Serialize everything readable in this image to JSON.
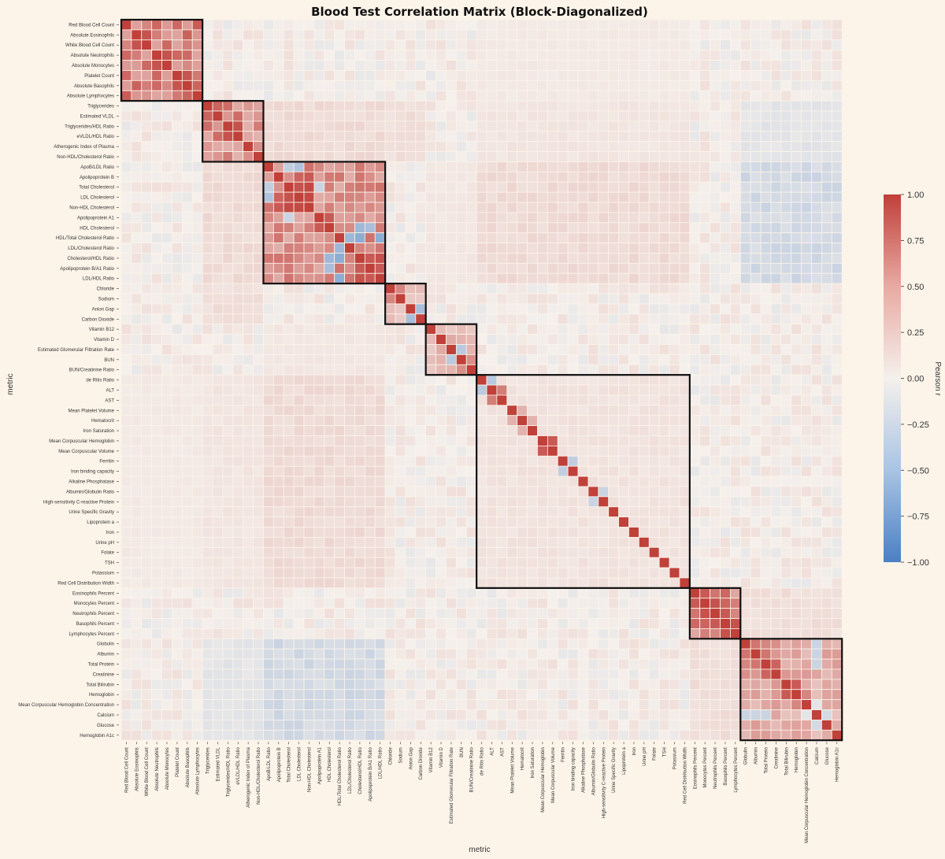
{
  "chart_data": {
    "type": "heatmap",
    "title": "Blood Test Correlation Matrix (Block-Diagonalized)",
    "xlabel": "metric",
    "ylabel": "metric",
    "colorbar_label": "Pearson r",
    "colorbar_ticks": [
      "1.00",
      "0.75",
      "0.50",
      "0.25",
      "0.00",
      "−0.25",
      "−0.50",
      "−0.75",
      "−1.00"
    ],
    "vmin": -1,
    "vmax": 1,
    "colors": {
      "high": "#c0403a",
      "mid": "#f5f0ec",
      "low": "#4a80c4",
      "block_outline": "#111111",
      "background": "#fcf4e9"
    },
    "metrics": [
      "Red Blood Cell Count",
      "Absolute Eosinophils",
      "White Blood Cell Count",
      "Absolute Neutrophils",
      "Absolute Monocytes",
      "Platelet Count",
      "Absolute Basophils",
      "Absolute Lymphocytes",
      "Triglycerides",
      "Estimated VLDL",
      "Triglycerides/HDL Ratio",
      "eVLDL/HDL Ratio",
      "Atherogenic Index of Plasma",
      "Non-HDL/Cholesterol Ratio",
      "ApoB/LDL Ratio",
      "Apolipoprotein B",
      "Total Cholesterol",
      "LDL Cholesterol",
      "Non-HDL Cholesterol",
      "Apolipoprotein A1",
      "HDL Cholesterol",
      "HDL/Total Cholesterol Ratio",
      "LDL/Cholesterol Ratio",
      "Cholesterol/HDL Ratio",
      "Apolipoprotein B/A1 Ratio",
      "LDL/HDL Ratio",
      "Chloride",
      "Sodium",
      "Anion Gap",
      "Carbon Dioxide",
      "Vitamin B12",
      "Vitamin D",
      "Estimated Glomerular Filtration Rate",
      "BUN",
      "BUN/Creatinine Ratio",
      "de Ritis Ratio",
      "ALT",
      "AST",
      "Mean Platelet Volume",
      "Hematocrit",
      "Iron Saturation",
      "Mean Corpuscular Hemoglobin",
      "Mean Corpuscular Volume",
      "Ferritin",
      "Iron binding capacity",
      "Alkaline Phosphatase",
      "Albumin/Globulin Ratio",
      "High-sensitivity C-reactive Protein",
      "Urine Specific Gravity",
      "Lipoprotein a",
      "Iron",
      "Urine pH",
      "Folate",
      "TSH",
      "Potassium",
      "Red Cell Distribution Width",
      "Eosinophils Percent",
      "Monocytes Percent",
      "Neutrophils Percent",
      "Basophils Percent",
      "Lymphocytes Percent",
      "Globulin",
      "Albumin",
      "Total Protein",
      "Creatinine",
      "Total Bilirubin",
      "Hemoglobin",
      "Mean Corpuscular Hemoglobin Concentration",
      "Calcium",
      "Glucose",
      "Hemoglobin A1c"
    ],
    "blocks": [
      [
        0,
        7
      ],
      [
        8,
        13
      ],
      [
        14,
        25
      ],
      [
        26,
        29
      ],
      [
        30,
        34
      ],
      [
        35,
        55
      ],
      [
        56,
        60
      ],
      [
        61,
        70
      ]
    ],
    "block_r": [
      0.85,
      0.68,
      0.72,
      0.35,
      0.35,
      0.1,
      0.82,
      0.5
    ],
    "strong_pairs": [
      [
        1,
        2,
        0.9
      ],
      [
        3,
        4,
        0.9
      ],
      [
        5,
        6,
        0.88
      ],
      [
        8,
        9,
        0.8
      ],
      [
        8,
        10,
        0.75
      ],
      [
        9,
        11,
        0.75
      ],
      [
        10,
        11,
        0.9
      ],
      [
        12,
        13,
        0.55
      ],
      [
        8,
        12,
        0.5
      ],
      [
        16,
        17,
        0.9
      ],
      [
        16,
        18,
        0.95
      ],
      [
        17,
        18,
        0.95
      ],
      [
        15,
        18,
        0.85
      ],
      [
        15,
        17,
        0.8
      ],
      [
        19,
        20,
        0.85
      ],
      [
        23,
        24,
        0.85
      ],
      [
        23,
        25,
        0.9
      ],
      [
        24,
        25,
        0.85
      ],
      [
        22,
        25,
        0.7
      ],
      [
        21,
        23,
        -0.6
      ],
      [
        21,
        25,
        -0.6
      ],
      [
        20,
        23,
        -0.5
      ],
      [
        20,
        24,
        -0.45
      ],
      [
        14,
        17,
        -0.4
      ],
      [
        14,
        16,
        -0.3
      ],
      [
        16,
        19,
        -0.25
      ],
      [
        21,
        22,
        -0.5
      ],
      [
        26,
        27,
        0.6
      ],
      [
        28,
        29,
        -0.45
      ],
      [
        26,
        29,
        0.3
      ],
      [
        31,
        32,
        0.4
      ],
      [
        32,
        33,
        -0.35
      ],
      [
        33,
        34,
        0.55
      ],
      [
        36,
        37,
        0.65
      ],
      [
        35,
        36,
        -0.35
      ],
      [
        38,
        39,
        0.35
      ],
      [
        39,
        40,
        0.35
      ],
      [
        41,
        42,
        0.85
      ],
      [
        43,
        44,
        -0.3
      ],
      [
        46,
        47,
        -0.25
      ],
      [
        45,
        46,
        0.1
      ],
      [
        56,
        57,
        0.85
      ],
      [
        57,
        58,
        0.9
      ],
      [
        58,
        59,
        0.85
      ],
      [
        59,
        60,
        0.9
      ],
      [
        61,
        62,
        0.7
      ],
      [
        61,
        63,
        0.6
      ],
      [
        62,
        63,
        0.7
      ],
      [
        63,
        64,
        0.8
      ],
      [
        64,
        65,
        0.5
      ],
      [
        65,
        66,
        0.85
      ],
      [
        66,
        67,
        0.6
      ],
      [
        61,
        64,
        0.55
      ],
      [
        62,
        64,
        0.5
      ],
      [
        67,
        68,
        -0.1
      ],
      [
        68,
        69,
        -0.2
      ],
      [
        61,
        68,
        -0.25
      ],
      [
        62,
        68,
        -0.25
      ],
      [
        63,
        68,
        -0.25
      ]
    ],
    "cross_blocks": [
      [
        1,
        2,
        0.12
      ],
      [
        1,
        3,
        0.1
      ],
      [
        1,
        5,
        0.06
      ],
      [
        2,
        5,
        0.12
      ],
      [
        2,
        7,
        -0.2
      ],
      [
        1,
        7,
        -0.1
      ],
      [
        6,
        7,
        0.1
      ],
      [
        0,
        5,
        0.04
      ],
      [
        2,
        4,
        0.05
      ]
    ]
  }
}
